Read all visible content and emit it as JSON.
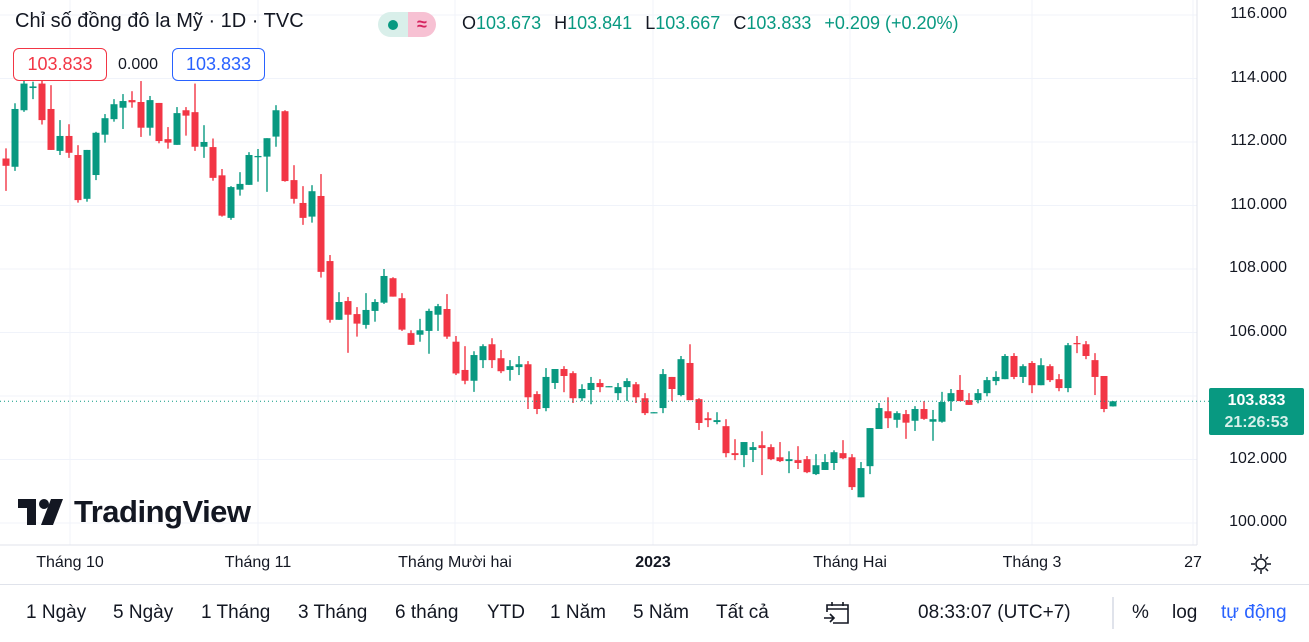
{
  "header": {
    "title": "Chỉ số đồng đô la Mỹ · 1D · TVC",
    "market_status_icon": "green-dot-icon",
    "data_delay_icon": "approx-icon",
    "ohlc": {
      "o_label": "O",
      "o": "103.673",
      "h_label": "H",
      "h": "103.841",
      "l_label": "L",
      "l": "103.667",
      "c_label": "C",
      "c": "103.833",
      "change": "+0.209 (+0.20%)"
    },
    "sell_price": "103.833",
    "spread": "0.000",
    "buy_price": "103.833"
  },
  "colors": {
    "up": "#089981",
    "down": "#f23645",
    "accent": "#2962ff",
    "grid": "#f0f3fa"
  },
  "price_axis": [
    "116.000",
    "114.000",
    "112.000",
    "110.000",
    "108.000",
    "106.000",
    "102.000",
    "100.000"
  ],
  "last_price": {
    "price": "103.833",
    "countdown": "21:26:53"
  },
  "time_axis": [
    {
      "label": "Tháng 10",
      "bold": false
    },
    {
      "label": "Tháng 11",
      "bold": false
    },
    {
      "label": "Tháng Mười hai",
      "bold": false
    },
    {
      "label": "2023",
      "bold": true
    },
    {
      "label": "Tháng Hai",
      "bold": false
    },
    {
      "label": "Tháng 3",
      "bold": false
    },
    {
      "label": "27",
      "bold": false
    }
  ],
  "logo": {
    "text": "TradingView"
  },
  "bottom_bar": {
    "ranges": [
      "1 Ngày",
      "5 Ngày",
      "1 Tháng",
      "3 Tháng",
      "6 tháng",
      "YTD",
      "1 Năm",
      "5 Năm",
      "Tất cả"
    ],
    "time": "08:33:07 (UTC+7)",
    "percent": "%",
    "log": "log",
    "auto": "tự động"
  },
  "chart_data": {
    "type": "candlestick",
    "title": "Chỉ số đồng đô la Mỹ · 1D · TVC",
    "ylim": [
      100,
      116
    ],
    "last": 103.833,
    "ohlc": [
      [
        111.48,
        111.8,
        110.46,
        111.25
      ],
      [
        111.22,
        113.22,
        111.09,
        113.04
      ],
      [
        113.0,
        114.0,
        112.95,
        113.84
      ],
      [
        113.7,
        113.9,
        113.35,
        113.75
      ],
      [
        113.84,
        114.0,
        112.55,
        112.69
      ],
      [
        113.04,
        113.79,
        111.75,
        111.75
      ],
      [
        111.72,
        112.69,
        111.59,
        112.19
      ],
      [
        112.19,
        112.56,
        111.5,
        111.66
      ],
      [
        111.59,
        111.9,
        110.09,
        110.17
      ],
      [
        110.21,
        111.75,
        110.12,
        111.75
      ],
      [
        110.96,
        112.32,
        110.8,
        112.29
      ],
      [
        112.23,
        112.88,
        111.98,
        112.75
      ],
      [
        112.72,
        113.35,
        112.64,
        113.19
      ],
      [
        113.08,
        113.51,
        112.41,
        113.29
      ],
      [
        113.32,
        113.6,
        113.08,
        113.25
      ],
      [
        113.26,
        113.92,
        112.16,
        112.45
      ],
      [
        112.45,
        113.45,
        112.2,
        113.32
      ],
      [
        113.23,
        113.23,
        111.96,
        112.03
      ],
      [
        112.09,
        112.47,
        111.79,
        111.98
      ],
      [
        111.91,
        113.1,
        111.91,
        112.91
      ],
      [
        113.0,
        113.1,
        112.2,
        112.83
      ],
      [
        112.94,
        113.84,
        111.72,
        111.85
      ],
      [
        111.85,
        112.53,
        111.5,
        112.0
      ],
      [
        111.84,
        112.11,
        110.78,
        110.87
      ],
      [
        110.95,
        111.15,
        109.65,
        109.68
      ],
      [
        109.61,
        110.61,
        109.55,
        110.58
      ],
      [
        110.5,
        111.05,
        110.31,
        110.68
      ],
      [
        110.65,
        111.68,
        110.65,
        111.59
      ],
      [
        111.52,
        111.78,
        110.75,
        111.56
      ],
      [
        111.54,
        112.12,
        110.43,
        112.12
      ],
      [
        112.17,
        113.16,
        111.85,
        113.0
      ],
      [
        112.97,
        113.0,
        110.75,
        110.77
      ],
      [
        110.8,
        111.27,
        110.06,
        110.21
      ],
      [
        110.08,
        110.61,
        109.39,
        109.61
      ],
      [
        109.65,
        110.64,
        109.46,
        110.45
      ],
      [
        110.3,
        110.99,
        107.73,
        107.91
      ],
      [
        108.25,
        108.44,
        106.31,
        106.4
      ],
      [
        106.4,
        107.27,
        106.4,
        106.96
      ],
      [
        106.99,
        107.12,
        105.36,
        106.56
      ],
      [
        106.58,
        106.8,
        105.87,
        106.28
      ],
      [
        106.24,
        107.24,
        106.12,
        106.71
      ],
      [
        106.68,
        107.05,
        106.34,
        106.96
      ],
      [
        106.94,
        108.0,
        106.9,
        107.78
      ],
      [
        107.71,
        107.74,
        107.13,
        107.13
      ],
      [
        107.08,
        107.24,
        106.05,
        106.09
      ],
      [
        105.98,
        106.07,
        105.61,
        105.61
      ],
      [
        105.93,
        106.43,
        105.71,
        106.07
      ],
      [
        106.05,
        106.75,
        105.33,
        106.68
      ],
      [
        106.56,
        106.9,
        106.05,
        106.83
      ],
      [
        106.74,
        107.21,
        105.8,
        105.87
      ],
      [
        105.71,
        105.89,
        104.66,
        104.71
      ],
      [
        104.82,
        105.57,
        104.37,
        104.48
      ],
      [
        104.48,
        105.41,
        104.13,
        105.29
      ],
      [
        105.13,
        105.63,
        104.88,
        105.57
      ],
      [
        105.63,
        105.82,
        104.88,
        105.13
      ],
      [
        105.19,
        105.45,
        104.72,
        104.78
      ],
      [
        104.82,
        105.13,
        104.48,
        104.94
      ],
      [
        104.91,
        105.26,
        104.66,
        105.0
      ],
      [
        105.0,
        105.1,
        103.59,
        103.96
      ],
      [
        104.06,
        104.15,
        103.43,
        103.59
      ],
      [
        103.62,
        104.88,
        103.52,
        104.6
      ],
      [
        104.41,
        104.85,
        104.22,
        104.85
      ],
      [
        104.85,
        104.94,
        104.12,
        104.63
      ],
      [
        104.72,
        104.78,
        103.78,
        103.93
      ],
      [
        103.93,
        104.37,
        103.84,
        104.22
      ],
      [
        104.19,
        104.6,
        103.74,
        104.41
      ],
      [
        104.41,
        104.53,
        104.12,
        104.28
      ],
      [
        104.28,
        104.31,
        104.28,
        104.31
      ],
      [
        104.09,
        104.41,
        103.87,
        104.28
      ],
      [
        104.28,
        104.56,
        103.84,
        104.47
      ],
      [
        104.37,
        104.44,
        103.78,
        103.96
      ],
      [
        103.93,
        104.09,
        103.4,
        103.46
      ],
      [
        103.46,
        103.49,
        103.46,
        103.49
      ],
      [
        103.62,
        104.85,
        103.46,
        104.69
      ],
      [
        104.6,
        104.6,
        103.84,
        104.22
      ],
      [
        104.03,
        105.26,
        103.99,
        105.16
      ],
      [
        105.04,
        105.63,
        103.87,
        103.87
      ],
      [
        103.9,
        103.93,
        102.93,
        103.15
      ],
      [
        103.3,
        103.49,
        103.02,
        103.24
      ],
      [
        103.18,
        103.49,
        103.11,
        103.24
      ],
      [
        103.05,
        103.27,
        102.07,
        102.2
      ],
      [
        102.2,
        102.64,
        101.98,
        102.14
      ],
      [
        102.14,
        102.55,
        101.76,
        102.55
      ],
      [
        102.3,
        102.55,
        101.92,
        102.39
      ],
      [
        102.45,
        102.89,
        101.51,
        102.36
      ],
      [
        102.39,
        102.48,
        101.98,
        102.01
      ],
      [
        102.07,
        102.55,
        101.92,
        101.95
      ],
      [
        101.95,
        102.26,
        101.57,
        102.01
      ],
      [
        101.98,
        102.42,
        101.7,
        101.89
      ],
      [
        102.01,
        102.11,
        101.57,
        101.6
      ],
      [
        101.54,
        102.17,
        101.51,
        101.82
      ],
      [
        101.67,
        102.17,
        101.67,
        101.92
      ],
      [
        101.89,
        102.29,
        101.67,
        102.23
      ],
      [
        102.2,
        102.61,
        102.01,
        102.04
      ],
      [
        102.07,
        102.17,
        101.04,
        101.13
      ],
      [
        100.81,
        101.92,
        100.81,
        101.73
      ],
      [
        101.79,
        102.99,
        101.54,
        102.99
      ],
      [
        102.96,
        103.78,
        102.96,
        103.62
      ],
      [
        103.52,
        103.96,
        102.99,
        103.3
      ],
      [
        103.25,
        103.52,
        103.0,
        103.46
      ],
      [
        103.43,
        103.56,
        102.65,
        103.16
      ],
      [
        103.22,
        103.68,
        102.9,
        103.59
      ],
      [
        103.59,
        103.84,
        103.25,
        103.28
      ],
      [
        103.19,
        103.56,
        102.59,
        103.27
      ],
      [
        103.19,
        104.13,
        103.16,
        103.81
      ],
      [
        103.84,
        104.22,
        103.53,
        104.09
      ],
      [
        104.19,
        104.66,
        103.84,
        103.84
      ],
      [
        103.87,
        104.09,
        103.72,
        103.72
      ],
      [
        103.87,
        104.22,
        103.77,
        104.09
      ],
      [
        104.09,
        104.6,
        103.99,
        104.5
      ],
      [
        104.47,
        104.78,
        104.34,
        104.6
      ],
      [
        104.53,
        105.32,
        104.53,
        105.26
      ],
      [
        105.26,
        105.35,
        104.53,
        104.6
      ],
      [
        104.6,
        105.0,
        104.41,
        104.94
      ],
      [
        105.04,
        105.1,
        104.09,
        104.34
      ],
      [
        104.34,
        105.19,
        104.34,
        104.97
      ],
      [
        104.94,
        105.0,
        104.44,
        104.5
      ],
      [
        104.53,
        104.69,
        104.15,
        104.25
      ],
      [
        104.25,
        105.67,
        104.12,
        105.6
      ],
      [
        105.67,
        105.89,
        105.35,
        105.63
      ],
      [
        105.63,
        105.73,
        105.16,
        105.26
      ],
      [
        105.13,
        105.35,
        104.03,
        104.6
      ],
      [
        104.63,
        104.63,
        103.49,
        103.59
      ],
      [
        103.673,
        103.841,
        103.667,
        103.833
      ]
    ]
  }
}
